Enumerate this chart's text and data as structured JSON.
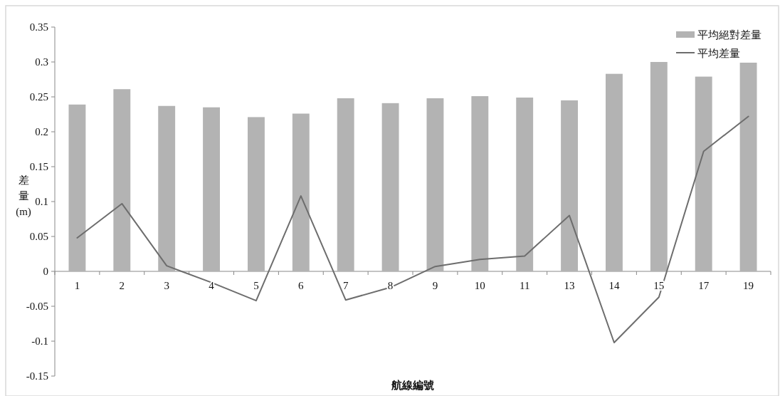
{
  "chart_data": {
    "type": "bar",
    "xlabel": "航線編號",
    "ylabel": "差量 (m)",
    "categories": [
      "1",
      "2",
      "3",
      "4",
      "5",
      "6",
      "7",
      "8",
      "9",
      "10",
      "11",
      "13",
      "14",
      "15",
      "17",
      "19"
    ],
    "series": [
      {
        "name": "平均絕對差量",
        "color": "#b3b3b3",
        "values": [
          0.239,
          0.261,
          0.237,
          0.235,
          0.221,
          0.226,
          0.248,
          0.241,
          0.248,
          0.251,
          0.249,
          0.245,
          0.283,
          0.3,
          0.279,
          0.299
        ]
      },
      {
        "name": "平均差量",
        "type": "line",
        "color": "#6d6d6d",
        "values": [
          0.048,
          0.097,
          0.008,
          -0.016,
          -0.042,
          0.108,
          -0.041,
          -0.023,
          0.007,
          0.017,
          0.022,
          0.08,
          -0.102,
          -0.037,
          0.172,
          0.222
        ]
      }
    ],
    "ylim": [
      -0.15,
      0.35
    ],
    "yticks": [
      -0.15,
      -0.1,
      -0.05,
      0,
      0.05,
      0.1,
      0.15,
      0.2,
      0.25,
      0.3,
      0.35
    ],
    "grid": false,
    "legend": "top right",
    "marker": "none",
    "line_style": "solid"
  }
}
